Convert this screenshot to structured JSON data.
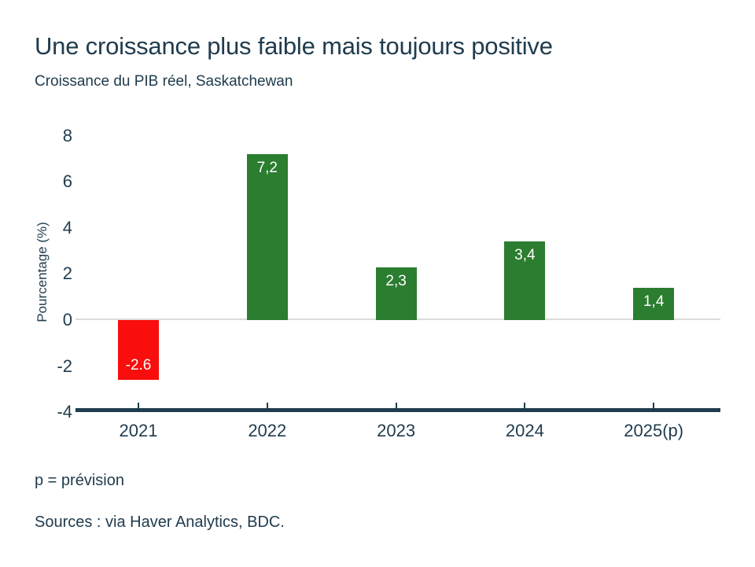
{
  "page": {
    "title": "Une croissance plus faible mais toujours positive",
    "subtitle": "Croissance du PIB réel, Saskatchewan",
    "footnote": "p = prévision",
    "sources": "Sources : via Haver Analytics, BDC."
  },
  "colors": {
    "text": "#203c4e",
    "axis_line": "#203c4e",
    "tick_mark": "#203c4e",
    "zero_line": "#dcdcd8",
    "positive_bar": "#2b7d2f",
    "negative_bar": "#f90d0d",
    "bar_label_text": "#ffffff",
    "background": "#ffffff"
  },
  "chart_data": {
    "type": "bar",
    "title": "Une croissance plus faible mais toujours positive",
    "subtitle": "Croissance du PIB réel, Saskatchewan",
    "categories": [
      "2021",
      "2022",
      "2023",
      "2024",
      "2025(p)"
    ],
    "values": [
      -2.6,
      7.2,
      2.3,
      3.4,
      1.4
    ],
    "value_labels": [
      "-2.6",
      "7,2",
      "2,3",
      "3,4",
      "1,4"
    ],
    "xlabel": "",
    "ylabel": "Pourcentage (%)",
    "ylim": [
      -4,
      8
    ],
    "yticks": [
      8,
      6,
      4,
      2,
      0,
      -2,
      -4
    ],
    "grid": false,
    "gridlines_shown": [
      "zero-baseline-only"
    ],
    "legend": "none",
    "bar_color_rule": "negative values red, positive values green",
    "label_position": "inside bar at value end"
  }
}
